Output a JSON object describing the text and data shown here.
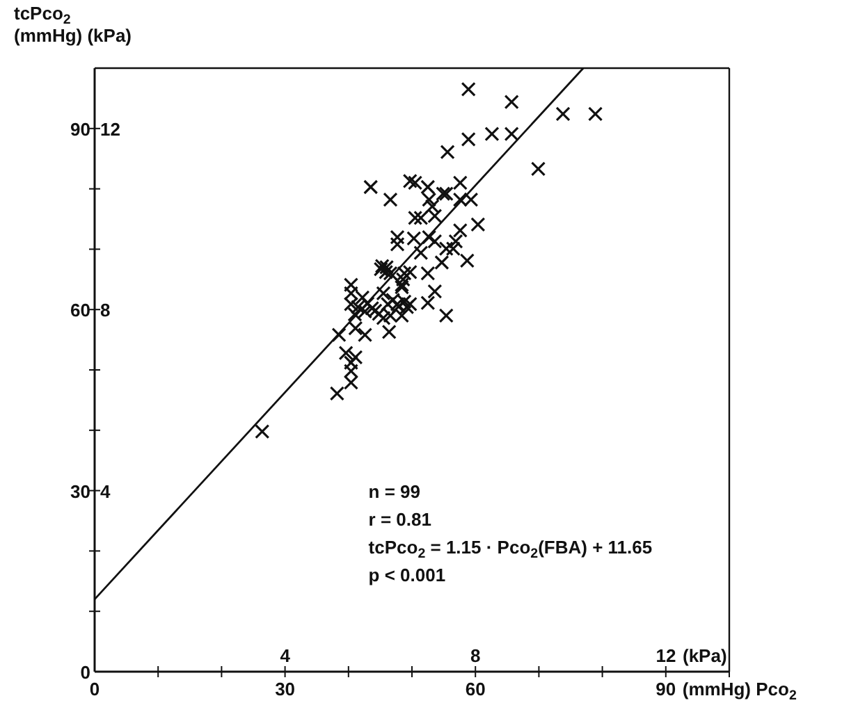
{
  "chart_data": {
    "type": "scatter",
    "xlabel": "(mmHg)   Pco$_{2}$",
    "ylabel": "tcPco$_{2}$\n(mmHg) (kPa)",
    "x2label": "(kPa)",
    "xlim": [
      0,
      100
    ],
    "ylim": [
      0,
      100
    ],
    "xticks": [
      0,
      {
        "value": 10,
        "label": null
      },
      {
        "value": 20,
        "label": null
      },
      30,
      {
        "value": 40,
        "label": null
      },
      {
        "value": 50,
        "label": null
      },
      60,
      {
        "value": 70,
        "label": null
      },
      {
        "value": 80,
        "label": null
      },
      90,
      {
        "value": 100,
        "label": null
      }
    ],
    "yticks": [
      0,
      {
        "value": 10,
        "label": null
      },
      {
        "value": 20,
        "label": null
      },
      30,
      {
        "value": 40,
        "label": null
      },
      {
        "value": 50,
        "label": null
      },
      60,
      {
        "value": 70,
        "label": null
      },
      {
        "value": 80,
        "label": null
      },
      90
    ],
    "x2lim": [
      0,
      13.33
    ],
    "x2ticks": [
      4,
      8,
      12
    ],
    "y2lim": [
      0,
      13.33
    ],
    "y2ticks": [
      4,
      8,
      12
    ],
    "marker": "cross",
    "grid": false,
    "annotations": [
      "n = 99",
      "r = 0.81",
      "tcPco$_{2}$ = 1.15 · Pco$_{2}$(FBA) + 11.65",
      "p < 0.001"
    ],
    "series": [
      {
        "color": "#111111",
        "x": [
          43.5,
          46.6,
          49.7,
          50.5,
          52.5,
          57.6,
          69.9,
          52.7,
          54.9,
          55.4,
          57.6,
          59.3,
          53.2,
          50.5,
          51.4,
          53.6,
          60.4,
          57.6,
          47.7,
          47.7,
          50.3,
          52.7,
          53.6,
          51.4,
          55.4,
          56.5,
          56.9,
          54.7,
          58.7,
          45.1,
          45.9,
          46.6,
          48.8,
          49.7,
          52.5,
          48.4,
          48.4,
          53.6,
          52.5,
          40.4,
          40.4,
          42.2,
          45.5,
          47.0,
          48.8,
          49.7,
          40.4,
          41.5,
          42.6,
          43.7,
          44.8,
          45.5,
          46.2,
          47.7,
          49.2,
          48.4,
          46.6,
          55.4,
          38.5,
          41.1,
          42.6,
          46.4,
          39.6,
          41.1,
          40.4,
          40.4,
          40.4,
          38.2,
          58.9,
          65.7,
          73.8,
          78.9,
          58.9,
          62.6,
          65.7,
          55.6,
          26.4,
          45.3,
          46.0,
          47.9,
          48.6,
          41.0,
          43.0,
          44.2
        ],
        "values": [
          80.3,
          78.2,
          81.3,
          81.0,
          80.3,
          81.0,
          83.3,
          78.2,
          79.2,
          79.2,
          78.2,
          78.2,
          77.1,
          75.2,
          75.2,
          75.5,
          74.1,
          73.1,
          72.0,
          70.8,
          71.8,
          72.0,
          71.3,
          69.4,
          70.1,
          70.1,
          71.3,
          67.8,
          68.1,
          66.7,
          66.2,
          66.0,
          66.0,
          66.2,
          66.0,
          64.1,
          63.7,
          63.0,
          61.1,
          64.1,
          62.7,
          62.0,
          62.7,
          61.6,
          61.3,
          60.9,
          60.9,
          60.4,
          59.7,
          60.2,
          59.3,
          58.6,
          60.9,
          60.9,
          60.4,
          59.0,
          59.0,
          59.0,
          55.8,
          56.9,
          55.8,
          56.3,
          52.8,
          52.1,
          51.2,
          49.8,
          47.9,
          46.1,
          96.5,
          94.4,
          92.4,
          92.4,
          88.2,
          89.1,
          89.1,
          86.1,
          39.8,
          67.2,
          67.0,
          60.5,
          65.0,
          59.2,
          61.0,
          59.8
        ]
      },
      {
        "type": "line",
        "marker": "none",
        "color": "#111111",
        "x": [
          0,
          77
        ],
        "values": [
          12,
          100
        ]
      }
    ]
  }
}
